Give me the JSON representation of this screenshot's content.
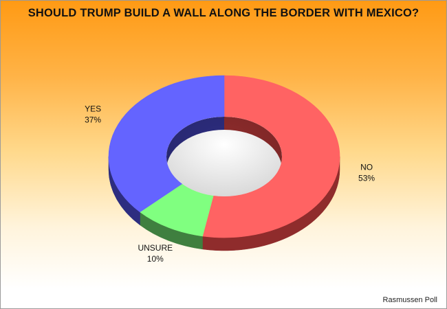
{
  "title": "SHOULD TRUMP BUILD A WALL ALONG THE BORDER WITH MEXICO?",
  "source": "Rasmussen Poll",
  "colors": {
    "background_top": "#ff9a14",
    "background_bottom": "#ffffff"
  },
  "chart_data": {
    "type": "pie",
    "variant": "3d-donut",
    "title": "SHOULD TRUMP BUILD A WALL ALONG THE BORDER WITH MEXICO?",
    "legend": "none",
    "slices": [
      {
        "label": "NO",
        "value": 53,
        "value_label": "53%",
        "color": "#ff6363",
        "side_color": "#8f2c2c"
      },
      {
        "label": "UNSURE",
        "value": 10,
        "value_label": "10%",
        "color": "#80ff80",
        "side_color": "#3f7f3f"
      },
      {
        "label": "YES",
        "value": 37,
        "value_label": "37%",
        "color": "#6464ff",
        "side_color": "#2d2d80"
      }
    ]
  }
}
